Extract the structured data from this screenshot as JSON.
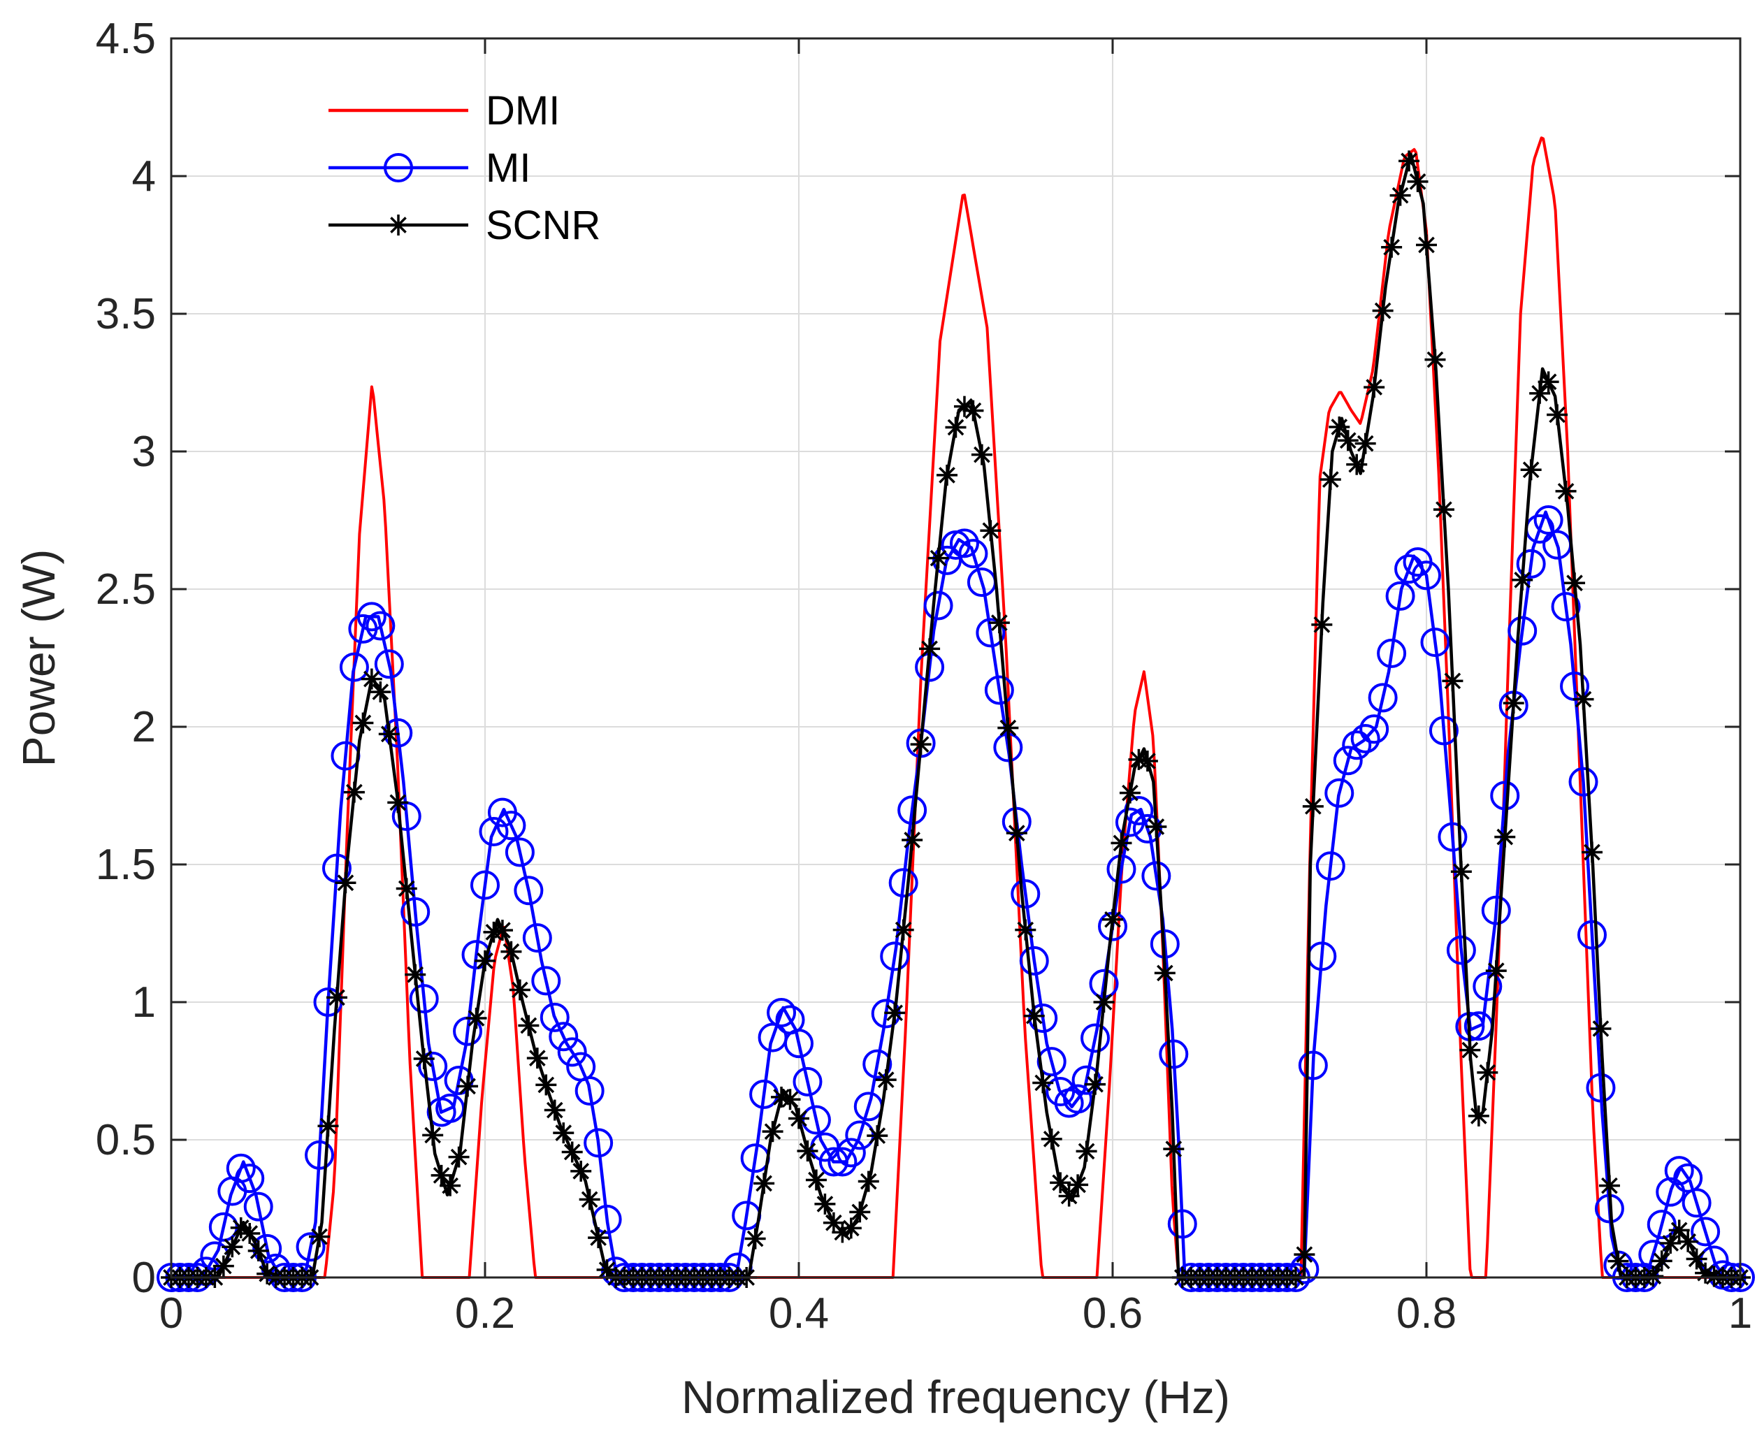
{
  "chart_data": {
    "type": "line",
    "title": "",
    "xlabel": "Normalized frequency (Hz)",
    "ylabel": "Power (W)",
    "xlim": [
      0,
      1
    ],
    "ylim": [
      0,
      4.5
    ],
    "xticks": [
      0,
      0.2,
      0.4,
      0.6,
      0.8,
      1
    ],
    "xtick_labels": [
      "0",
      "0.2",
      "0.4",
      "0.6",
      "0.8",
      "1"
    ],
    "yticks": [
      0,
      0.5,
      1,
      1.5,
      2,
      2.5,
      3,
      3.5,
      4,
      4.5
    ],
    "ytick_labels": [
      "0",
      "0.5",
      "1",
      "1.5",
      "2",
      "2.5",
      "3",
      "3.5",
      "4",
      "4.5"
    ],
    "grid": true,
    "legend_location": "top-left",
    "series": [
      {
        "name": "DMI",
        "color": "#ff0000",
        "marker": "none",
        "points": [
          [
            0,
            0
          ],
          [
            0.098,
            0
          ],
          [
            0.104,
            0.35
          ],
          [
            0.112,
            1.6
          ],
          [
            0.12,
            2.7
          ],
          [
            0.128,
            3.25
          ],
          [
            0.136,
            2.8
          ],
          [
            0.144,
            1.9
          ],
          [
            0.152,
            0.8
          ],
          [
            0.16,
            0
          ],
          [
            0.19,
            0
          ],
          [
            0.198,
            0.65
          ],
          [
            0.206,
            1.15
          ],
          [
            0.212,
            1.28
          ],
          [
            0.218,
            1.05
          ],
          [
            0.225,
            0.45
          ],
          [
            0.232,
            0
          ],
          [
            0.46,
            0
          ],
          [
            0.468,
            0.9
          ],
          [
            0.478,
            2.2
          ],
          [
            0.49,
            3.4
          ],
          [
            0.505,
            3.95
          ],
          [
            0.52,
            3.45
          ],
          [
            0.532,
            2.3
          ],
          [
            0.544,
            0.9
          ],
          [
            0.555,
            0
          ],
          [
            0.59,
            0
          ],
          [
            0.598,
            0.7
          ],
          [
            0.606,
            1.5
          ],
          [
            0.614,
            2.05
          ],
          [
            0.62,
            2.2
          ],
          [
            0.626,
            1.95
          ],
          [
            0.632,
            1.2
          ],
          [
            0.638,
            0.3
          ],
          [
            0.642,
            0
          ],
          [
            0.72,
            0
          ],
          [
            0.726,
            1.6
          ],
          [
            0.732,
            2.9
          ],
          [
            0.738,
            3.15
          ],
          [
            0.745,
            3.22
          ],
          [
            0.752,
            3.15
          ],
          [
            0.758,
            3.1
          ],
          [
            0.766,
            3.3
          ],
          [
            0.776,
            3.8
          ],
          [
            0.786,
            4.07
          ],
          [
            0.793,
            4.1
          ],
          [
            0.8,
            3.8
          ],
          [
            0.808,
            2.9
          ],
          [
            0.815,
            1.9
          ],
          [
            0.822,
            0.8
          ],
          [
            0.828,
            0
          ],
          [
            0.838,
            0
          ],
          [
            0.845,
            1.0
          ],
          [
            0.852,
            2.2
          ],
          [
            0.86,
            3.5
          ],
          [
            0.868,
            4.05
          ],
          [
            0.874,
            4.15
          ],
          [
            0.882,
            3.9
          ],
          [
            0.89,
            3.0
          ],
          [
            0.898,
            1.8
          ],
          [
            0.906,
            0.6
          ],
          [
            0.912,
            0
          ],
          [
            1,
            0
          ]
        ]
      },
      {
        "name": "MI",
        "color": "#0000ff",
        "marker": "circle",
        "points": [
          [
            0,
            0
          ],
          [
            0.02,
            0
          ],
          [
            0.03,
            0.1
          ],
          [
            0.038,
            0.3
          ],
          [
            0.046,
            0.42
          ],
          [
            0.054,
            0.3
          ],
          [
            0.062,
            0.08
          ],
          [
            0.07,
            0
          ],
          [
            0.085,
            0
          ],
          [
            0.092,
            0.2
          ],
          [
            0.1,
            1.0
          ],
          [
            0.108,
            1.7
          ],
          [
            0.116,
            2.2
          ],
          [
            0.124,
            2.4
          ],
          [
            0.132,
            2.4
          ],
          [
            0.14,
            2.2
          ],
          [
            0.148,
            1.8
          ],
          [
            0.156,
            1.3
          ],
          [
            0.164,
            0.85
          ],
          [
            0.172,
            0.6
          ],
          [
            0.18,
            0.62
          ],
          [
            0.188,
            0.85
          ],
          [
            0.196,
            1.25
          ],
          [
            0.204,
            1.6
          ],
          [
            0.212,
            1.7
          ],
          [
            0.22,
            1.6
          ],
          [
            0.228,
            1.4
          ],
          [
            0.236,
            1.15
          ],
          [
            0.244,
            0.95
          ],
          [
            0.252,
            0.85
          ],
          [
            0.26,
            0.78
          ],
          [
            0.266,
            0.7
          ],
          [
            0.272,
            0.5
          ],
          [
            0.278,
            0.2
          ],
          [
            0.284,
            0
          ],
          [
            0.36,
            0
          ],
          [
            0.366,
            0.2
          ],
          [
            0.374,
            0.5
          ],
          [
            0.382,
            0.85
          ],
          [
            0.39,
            0.98
          ],
          [
            0.398,
            0.9
          ],
          [
            0.406,
            0.7
          ],
          [
            0.414,
            0.5
          ],
          [
            0.422,
            0.42
          ],
          [
            0.43,
            0.42
          ],
          [
            0.438,
            0.5
          ],
          [
            0.446,
            0.65
          ],
          [
            0.454,
            0.9
          ],
          [
            0.462,
            1.2
          ],
          [
            0.47,
            1.6
          ],
          [
            0.478,
            1.95
          ],
          [
            0.486,
            2.35
          ],
          [
            0.494,
            2.6
          ],
          [
            0.502,
            2.68
          ],
          [
            0.51,
            2.65
          ],
          [
            0.518,
            2.5
          ],
          [
            0.526,
            2.2
          ],
          [
            0.534,
            1.9
          ],
          [
            0.542,
            1.5
          ],
          [
            0.55,
            1.15
          ],
          [
            0.558,
            0.85
          ],
          [
            0.566,
            0.68
          ],
          [
            0.574,
            0.62
          ],
          [
            0.582,
            0.68
          ],
          [
            0.59,
            0.9
          ],
          [
            0.598,
            1.2
          ],
          [
            0.606,
            1.5
          ],
          [
            0.612,
            1.68
          ],
          [
            0.618,
            1.7
          ],
          [
            0.624,
            1.6
          ],
          [
            0.632,
            1.3
          ],
          [
            0.638,
            0.9
          ],
          [
            0.642,
            0.5
          ],
          [
            0.646,
            0
          ],
          [
            0.722,
            0
          ],
          [
            0.728,
            0.8
          ],
          [
            0.736,
            1.35
          ],
          [
            0.744,
            1.75
          ],
          [
            0.752,
            1.92
          ],
          [
            0.76,
            1.95
          ],
          [
            0.768,
            2.0
          ],
          [
            0.776,
            2.2
          ],
          [
            0.784,
            2.5
          ],
          [
            0.792,
            2.62
          ],
          [
            0.8,
            2.55
          ],
          [
            0.808,
            2.2
          ],
          [
            0.816,
            1.65
          ],
          [
            0.822,
            1.2
          ],
          [
            0.828,
            0.9
          ],
          [
            0.836,
            0.92
          ],
          [
            0.844,
            1.3
          ],
          [
            0.852,
            1.9
          ],
          [
            0.86,
            2.3
          ],
          [
            0.868,
            2.65
          ],
          [
            0.876,
            2.78
          ],
          [
            0.884,
            2.65
          ],
          [
            0.892,
            2.3
          ],
          [
            0.9,
            1.8
          ],
          [
            0.906,
            1.2
          ],
          [
            0.912,
            0.6
          ],
          [
            0.918,
            0.15
          ],
          [
            0.924,
            0
          ],
          [
            0.94,
            0
          ],
          [
            0.948,
            0.15
          ],
          [
            0.956,
            0.32
          ],
          [
            0.962,
            0.4
          ],
          [
            0.968,
            0.35
          ],
          [
            0.976,
            0.2
          ],
          [
            0.984,
            0.05
          ],
          [
            0.99,
            0
          ],
          [
            1,
            0
          ]
        ]
      },
      {
        "name": "SCNR",
        "color": "#000000",
        "marker": "star",
        "points": [
          [
            0,
            0
          ],
          [
            0.03,
            0
          ],
          [
            0.038,
            0.1
          ],
          [
            0.046,
            0.2
          ],
          [
            0.054,
            0.12
          ],
          [
            0.062,
            0
          ],
          [
            0.09,
            0
          ],
          [
            0.096,
            0.2
          ],
          [
            0.104,
            0.9
          ],
          [
            0.112,
            1.5
          ],
          [
            0.12,
            1.95
          ],
          [
            0.128,
            2.18
          ],
          [
            0.136,
            2.1
          ],
          [
            0.144,
            1.75
          ],
          [
            0.152,
            1.3
          ],
          [
            0.16,
            0.85
          ],
          [
            0.168,
            0.45
          ],
          [
            0.176,
            0.3
          ],
          [
            0.184,
            0.45
          ],
          [
            0.192,
            0.85
          ],
          [
            0.2,
            1.15
          ],
          [
            0.208,
            1.3
          ],
          [
            0.216,
            1.2
          ],
          [
            0.224,
            1.0
          ],
          [
            0.232,
            0.82
          ],
          [
            0.24,
            0.68
          ],
          [
            0.248,
            0.55
          ],
          [
            0.256,
            0.45
          ],
          [
            0.264,
            0.35
          ],
          [
            0.27,
            0.2
          ],
          [
            0.276,
            0.05
          ],
          [
            0.28,
            0
          ],
          [
            0.368,
            0
          ],
          [
            0.374,
            0.2
          ],
          [
            0.382,
            0.5
          ],
          [
            0.39,
            0.68
          ],
          [
            0.398,
            0.62
          ],
          [
            0.406,
            0.45
          ],
          [
            0.414,
            0.3
          ],
          [
            0.422,
            0.2
          ],
          [
            0.43,
            0.15
          ],
          [
            0.438,
            0.22
          ],
          [
            0.446,
            0.38
          ],
          [
            0.454,
            0.65
          ],
          [
            0.462,
            1.0
          ],
          [
            0.47,
            1.45
          ],
          [
            0.478,
            1.95
          ],
          [
            0.486,
            2.45
          ],
          [
            0.494,
            2.9
          ],
          [
            0.502,
            3.15
          ],
          [
            0.51,
            3.18
          ],
          [
            0.518,
            2.95
          ],
          [
            0.526,
            2.5
          ],
          [
            0.534,
            1.95
          ],
          [
            0.542,
            1.4
          ],
          [
            0.55,
            0.95
          ],
          [
            0.558,
            0.6
          ],
          [
            0.566,
            0.35
          ],
          [
            0.574,
            0.28
          ],
          [
            0.582,
            0.4
          ],
          [
            0.59,
            0.75
          ],
          [
            0.598,
            1.2
          ],
          [
            0.606,
            1.6
          ],
          [
            0.614,
            1.85
          ],
          [
            0.62,
            1.92
          ],
          [
            0.626,
            1.8
          ],
          [
            0.632,
            1.25
          ],
          [
            0.638,
            0.6
          ],
          [
            0.642,
            0
          ],
          [
            0.722,
            0
          ],
          [
            0.726,
            1.5
          ],
          [
            0.734,
            2.45
          ],
          [
            0.74,
            3.0
          ],
          [
            0.746,
            3.12
          ],
          [
            0.752,
            3.0
          ],
          [
            0.758,
            2.92
          ],
          [
            0.766,
            3.2
          ],
          [
            0.774,
            3.6
          ],
          [
            0.782,
            3.9
          ],
          [
            0.79,
            4.08
          ],
          [
            0.798,
            3.9
          ],
          [
            0.806,
            3.3
          ],
          [
            0.814,
            2.5
          ],
          [
            0.822,
            1.5
          ],
          [
            0.828,
            0.8
          ],
          [
            0.832,
            0.58
          ],
          [
            0.836,
            0.6
          ],
          [
            0.842,
            0.9
          ],
          [
            0.85,
            1.6
          ],
          [
            0.858,
            2.3
          ],
          [
            0.866,
            2.9
          ],
          [
            0.874,
            3.3
          ],
          [
            0.882,
            3.2
          ],
          [
            0.89,
            2.8
          ],
          [
            0.898,
            2.3
          ],
          [
            0.906,
            1.5
          ],
          [
            0.912,
            0.8
          ],
          [
            0.918,
            0.2
          ],
          [
            0.924,
            0
          ],
          [
            0.944,
            0
          ],
          [
            0.952,
            0.08
          ],
          [
            0.96,
            0.18
          ],
          [
            0.968,
            0.12
          ],
          [
            0.976,
            0.02
          ],
          [
            0.985,
            0
          ],
          [
            1,
            0
          ]
        ]
      }
    ]
  }
}
